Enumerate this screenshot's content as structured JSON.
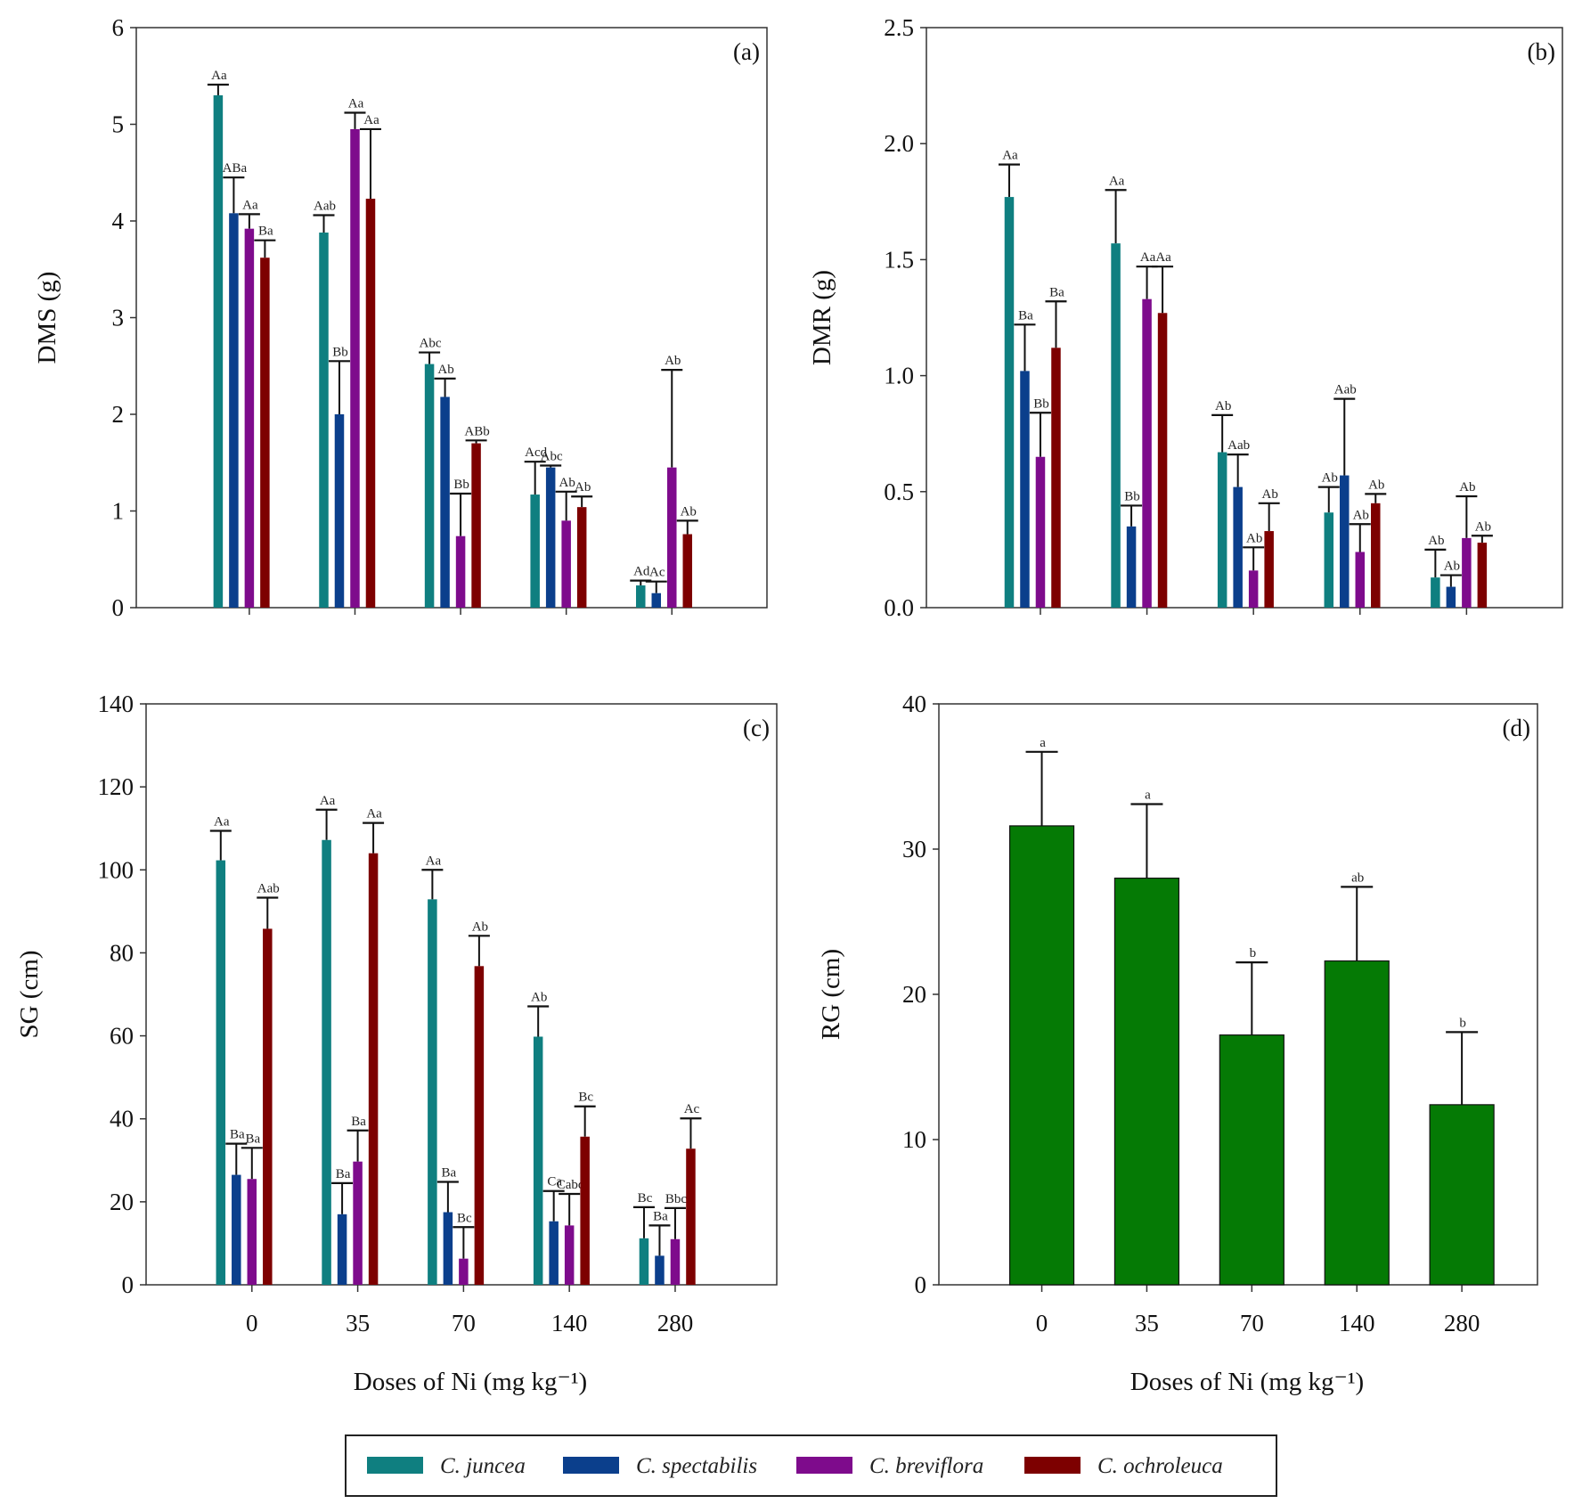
{
  "legend": {
    "items": [
      {
        "label": "C. juncea",
        "color": "#0f7f80"
      },
      {
        "label": "C. spectabilis",
        "color": "#0b3f8c"
      },
      {
        "label": "C. breviflora",
        "color": "#7e0b8c"
      },
      {
        "label": "C. ochroleuca",
        "color": "#7d0000"
      }
    ]
  },
  "chart_data": [
    {
      "type": "bar",
      "title": "(a)",
      "ylabel": "DMS (g)",
      "xlabel": "",
      "ylim": [
        0,
        6
      ],
      "yticks": [
        0,
        1,
        2,
        3,
        4,
        5,
        6
      ],
      "ytick_labels": [
        "0",
        "1",
        "2",
        "3",
        "4",
        "5",
        "6"
      ],
      "categories": [
        "0",
        "35",
        "70",
        "140",
        "280"
      ],
      "show_xtick_labels": false,
      "series": [
        {
          "name": "C. juncea",
          "values": [
            5.3,
            3.88,
            2.52,
            1.17,
            0.23
          ],
          "error_upper": [
            5.41,
            4.06,
            2.64,
            1.51,
            0.28
          ],
          "letters": [
            "Aa",
            "Aab",
            "Abc",
            "Acd",
            "Ad"
          ]
        },
        {
          "name": "C. spectabilis",
          "values": [
            4.08,
            2.0,
            2.18,
            1.45,
            0.15
          ],
          "error_upper": [
            4.45,
            2.55,
            2.37,
            1.47,
            0.27
          ],
          "letters": [
            "ABa",
            "Bb",
            "Ab",
            "Abc",
            "Ac"
          ]
        },
        {
          "name": "C. breviflora",
          "values": [
            3.92,
            4.95,
            0.74,
            0.9,
            1.45
          ],
          "error_upper": [
            4.07,
            5.12,
            1.18,
            1.2,
            2.46
          ],
          "letters": [
            "Aa",
            "Aa",
            "Bb",
            "Ab",
            "Ab"
          ]
        },
        {
          "name": "C. ochroleuca",
          "values": [
            3.62,
            4.23,
            1.7,
            1.04,
            0.76
          ],
          "error_upper": [
            3.8,
            4.95,
            1.73,
            1.15,
            0.9
          ],
          "letters": [
            "Ba",
            "Aa",
            "ABb",
            "Ab",
            "Ab"
          ]
        }
      ]
    },
    {
      "type": "bar",
      "title": "(b)",
      "ylabel": "DMR (g)",
      "xlabel": "",
      "ylim": [
        0,
        2.5
      ],
      "yticks": [
        0,
        0.5,
        1.0,
        1.5,
        2.0,
        2.5
      ],
      "ytick_labels": [
        "0.0",
        "0.5",
        "1.0",
        "1.5",
        "2.0",
        "2.5"
      ],
      "categories": [
        "0",
        "35",
        "70",
        "140",
        "280"
      ],
      "show_xtick_labels": false,
      "series": [
        {
          "name": "C. juncea",
          "values": [
            1.77,
            1.57,
            0.67,
            0.41,
            0.13
          ],
          "error_upper": [
            1.91,
            1.8,
            0.83,
            0.52,
            0.25
          ],
          "letters": [
            "Aa",
            "Aa",
            "Ab",
            "Ab",
            "Ab"
          ]
        },
        {
          "name": "C. spectabilis",
          "values": [
            1.02,
            0.35,
            0.52,
            0.57,
            0.09
          ],
          "error_upper": [
            1.22,
            0.44,
            0.66,
            0.9,
            0.14
          ],
          "letters": [
            "Ba",
            "Bb",
            "Aab",
            "Aab",
            "Ab"
          ]
        },
        {
          "name": "C. breviflora",
          "values": [
            0.65,
            1.33,
            0.16,
            0.24,
            0.3
          ],
          "error_upper": [
            0.84,
            1.47,
            0.26,
            0.36,
            0.48
          ],
          "letters": [
            "Bb",
            "Aa",
            "Ab",
            "Ab",
            "Ab"
          ]
        },
        {
          "name": "C. ochroleuca",
          "values": [
            1.12,
            1.27,
            0.33,
            0.45,
            0.28
          ],
          "error_upper": [
            1.32,
            1.47,
            0.45,
            0.49,
            0.31
          ],
          "letters": [
            "Ba",
            "Aa",
            "Ab",
            "Ab",
            "Ab"
          ]
        }
      ]
    },
    {
      "type": "bar",
      "title": "(c)",
      "ylabel": "SG (cm)",
      "xlabel": "Doses of Ni (mg kg⁻¹)",
      "ylim": [
        0,
        140
      ],
      "yticks": [
        0,
        20,
        40,
        60,
        80,
        100,
        120,
        140
      ],
      "ytick_labels": [
        "0",
        "20",
        "40",
        "60",
        "80",
        "100",
        "120",
        "140"
      ],
      "categories": [
        "0",
        "35",
        "70",
        "140",
        "280"
      ],
      "show_xtick_labels": true,
      "series": [
        {
          "name": "C. juncea",
          "values": [
            102.3,
            107.2,
            92.9,
            59.8,
            11.2
          ],
          "error_upper": [
            109.4,
            114.5,
            100.0,
            67.1,
            18.7
          ],
          "letters": [
            "Aa",
            "Aa",
            "Aa",
            "Ab",
            "Bc"
          ]
        },
        {
          "name": "C. spectabilis",
          "values": [
            26.5,
            17.0,
            17.5,
            15.3,
            7.0
          ],
          "error_upper": [
            34.0,
            24.5,
            24.8,
            22.6,
            14.3
          ],
          "letters": [
            "Ba",
            "Ba",
            "Ba",
            "Ca",
            "Ba"
          ]
        },
        {
          "name": "C. breviflora",
          "values": [
            25.5,
            29.7,
            6.3,
            14.3,
            11.0
          ],
          "error_upper": [
            33.0,
            37.2,
            13.9,
            21.9,
            18.5
          ],
          "letters": [
            "Ba",
            "Ba",
            "Bc",
            "Cabc",
            "Bbc"
          ]
        },
        {
          "name": "C. ochroleuca",
          "values": [
            85.8,
            104.0,
            76.8,
            35.7,
            32.8
          ],
          "error_upper": [
            93.3,
            111.3,
            84.1,
            43.0,
            40.1
          ],
          "letters": [
            "Aab",
            "Aa",
            "Ab",
            "Bc",
            "Ac"
          ]
        }
      ]
    },
    {
      "type": "bar",
      "title": "(d)",
      "ylabel": "RG (cm)",
      "xlabel": "Doses of Ni (mg kg⁻¹)",
      "ylim": [
        0,
        40
      ],
      "yticks": [
        0,
        10,
        20,
        30,
        40
      ],
      "ytick_labels": [
        "0",
        "10",
        "20",
        "30",
        "40"
      ],
      "categories": [
        "0",
        "35",
        "70",
        "140",
        "280"
      ],
      "show_xtick_labels": true,
      "color": "#057a05",
      "series": [
        {
          "name": "RG",
          "values": [
            31.6,
            28.0,
            17.2,
            22.3,
            12.4
          ],
          "error_upper": [
            36.7,
            33.1,
            22.2,
            27.4,
            17.4
          ],
          "letters": [
            "a",
            "a",
            "b",
            "ab",
            "b"
          ]
        }
      ]
    }
  ]
}
